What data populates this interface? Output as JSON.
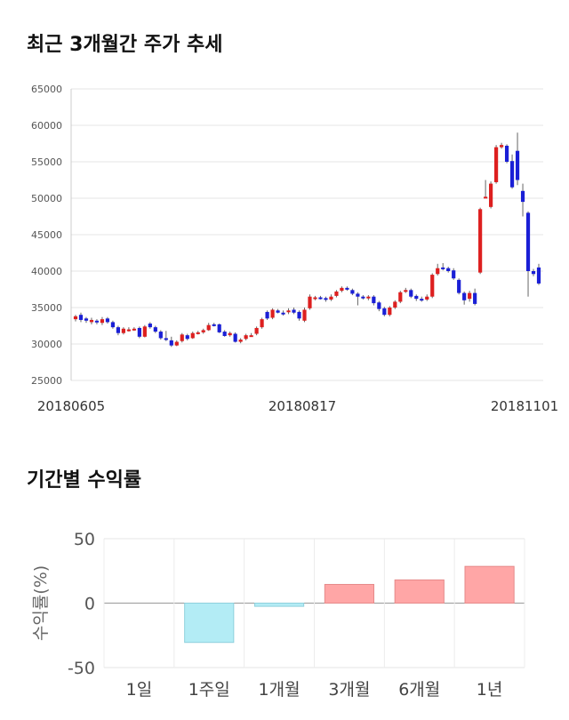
{
  "sections": {
    "candle_title": "최근 3개월간 주가 추세",
    "returns_title": "기간별 수익률"
  },
  "colors": {
    "up": "#dd1f1f",
    "down": "#1a1fd6",
    "positive_bar": "#ffa6a6",
    "negative_bar": "#b3ecf5"
  },
  "chart_data": [
    {
      "type": "candlestick",
      "title": "최근 3개월간 주가 추세",
      "ylim": [
        25000,
        65000
      ],
      "yticks": [
        25000,
        30000,
        35000,
        40000,
        45000,
        50000,
        55000,
        60000,
        65000
      ],
      "xtick_labels": [
        "20180605",
        "20180817",
        "20181101"
      ],
      "grid": true,
      "series": [
        [
          33400,
          33800,
          33100,
          34000
        ],
        [
          34000,
          33300,
          33000,
          34300
        ],
        [
          33500,
          33200,
          32900,
          33700
        ],
        [
          33000,
          33300,
          32700,
          33600
        ],
        [
          33200,
          33000,
          32700,
          33400
        ],
        [
          32900,
          33400,
          32600,
          33700
        ],
        [
          33500,
          33000,
          32800,
          33700
        ],
        [
          33000,
          32300,
          32100,
          33200
        ],
        [
          32300,
          31500,
          31200,
          32500
        ],
        [
          31500,
          32100,
          31300,
          32300
        ],
        [
          32000,
          32000,
          31700,
          32300
        ],
        [
          32000,
          32100,
          31800,
          32300
        ],
        [
          32200,
          31000,
          30800,
          32400
        ],
        [
          31000,
          32400,
          30900,
          32600
        ],
        [
          32800,
          32300,
          32100,
          33000
        ],
        [
          32300,
          31700,
          31500,
          32500
        ],
        [
          31700,
          30800,
          30600,
          31900
        ],
        [
          30800,
          30600,
          30400,
          31800
        ],
        [
          30500,
          29800,
          29600,
          31000
        ],
        [
          29800,
          30300,
          29700,
          30500
        ],
        [
          30400,
          31300,
          30200,
          31500
        ],
        [
          31200,
          30700,
          30500,
          31400
        ],
        [
          30800,
          31500,
          30700,
          31700
        ],
        [
          31500,
          31600,
          31300,
          31800
        ],
        [
          31600,
          31900,
          31400,
          32100
        ],
        [
          31900,
          32600,
          31800,
          32900
        ],
        [
          32700,
          32600,
          32400,
          32900
        ],
        [
          32700,
          31600,
          31500,
          32800
        ],
        [
          31700,
          31100,
          31000,
          31900
        ],
        [
          31200,
          31500,
          31000,
          31700
        ],
        [
          31400,
          30300,
          30200,
          31600
        ],
        [
          30300,
          30600,
          30100,
          30800
        ],
        [
          30700,
          31200,
          30500,
          31400
        ],
        [
          31200,
          31200,
          31000,
          31500
        ],
        [
          31400,
          32200,
          31200,
          32400
        ],
        [
          32300,
          33400,
          32100,
          33600
        ],
        [
          34400,
          33500,
          33300,
          34600
        ],
        [
          33600,
          34700,
          33400,
          34900
        ],
        [
          34600,
          34300,
          34200,
          34800
        ],
        [
          34300,
          34200,
          33900,
          34600
        ],
        [
          34400,
          34600,
          34100,
          34900
        ],
        [
          34700,
          34300,
          34100,
          35000
        ],
        [
          34400,
          33500,
          33200,
          34600
        ],
        [
          33200,
          34700,
          33000,
          35000
        ],
        [
          34900,
          36500,
          34700,
          36800
        ],
        [
          36400,
          36400,
          36000,
          36600
        ],
        [
          36400,
          36300,
          36100,
          36600
        ],
        [
          36300,
          36100,
          35800,
          36500
        ],
        [
          36100,
          36500,
          35900,
          36800
        ],
        [
          36600,
          37200,
          36400,
          37400
        ],
        [
          37300,
          37700,
          37100,
          37900
        ],
        [
          37700,
          37500,
          37300,
          37900
        ],
        [
          37400,
          36900,
          36700,
          37600
        ],
        [
          36900,
          36500,
          35300,
          37100
        ],
        [
          36500,
          36300,
          36100,
          36700
        ],
        [
          36300,
          36500,
          36000,
          36700
        ],
        [
          36500,
          35600,
          35300,
          36700
        ],
        [
          35700,
          34800,
          34500,
          35900
        ],
        [
          34900,
          34000,
          33800,
          35100
        ],
        [
          34000,
          35000,
          33800,
          35200
        ],
        [
          35000,
          35800,
          34800,
          36000
        ],
        [
          35800,
          37100,
          35600,
          37300
        ],
        [
          37200,
          37400,
          37000,
          37700
        ],
        [
          37400,
          36500,
          36300,
          37600
        ],
        [
          36600,
          36200,
          35900,
          36800
        ],
        [
          36200,
          36000,
          35800,
          36500
        ],
        [
          36100,
          36500,
          35900,
          36800
        ],
        [
          36500,
          39500,
          36300,
          39700
        ],
        [
          39600,
          40400,
          39400,
          41000
        ],
        [
          40500,
          40300,
          40100,
          41100
        ],
        [
          40400,
          40000,
          39800,
          40600
        ],
        [
          40100,
          39000,
          38800,
          40400
        ],
        [
          38800,
          37000,
          36800,
          39000
        ],
        [
          37000,
          36000,
          35400,
          37200
        ],
        [
          36200,
          37000,
          35800,
          37300
        ],
        [
          37000,
          35500,
          35300,
          37600
        ],
        [
          39800,
          48500,
          39600,
          48700
        ],
        [
          50000,
          50200,
          50000,
          52500
        ],
        [
          48800,
          52000,
          48600,
          52300
        ],
        [
          52200,
          57000,
          52000,
          57300
        ],
        [
          57000,
          57300,
          56800,
          57600
        ],
        [
          57200,
          55000,
          54800,
          57400
        ],
        [
          55100,
          51500,
          51300,
          56000
        ],
        [
          56500,
          52500,
          51800,
          59000
        ],
        [
          51000,
          49500,
          47500,
          52000
        ],
        [
          48000,
          40000,
          36500,
          48200
        ],
        [
          40000,
          39600,
          39300,
          40300
        ],
        [
          40500,
          38300,
          38100,
          41000
        ]
      ]
    },
    {
      "type": "bar",
      "title": "기간별 수익률",
      "ylabel": "수익률(%)",
      "categories": [
        "1일",
        "1주일",
        "1개월",
        "3개월",
        "6개월",
        "1년"
      ],
      "values": [
        0,
        -30.5,
        -2.5,
        14.5,
        18,
        28.5
      ],
      "ylim": [
        -50,
        50
      ],
      "yticks": [
        -50,
        0,
        50
      ],
      "grid": true
    }
  ]
}
